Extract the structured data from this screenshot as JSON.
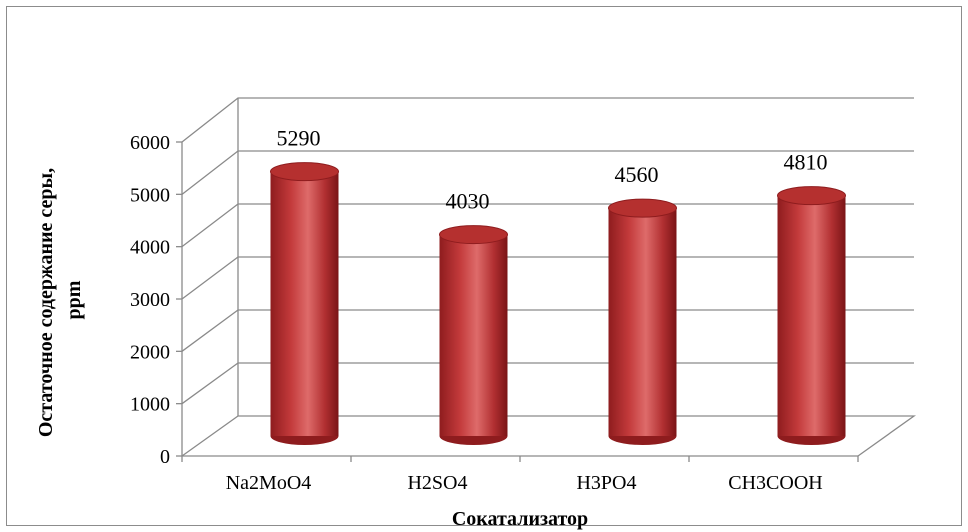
{
  "chart_data": {
    "type": "bar",
    "style": "3d-cylinder",
    "categories": [
      "Na2MoO4",
      "H2SO4",
      "H3PO4",
      "CH3COOH"
    ],
    "values": [
      5290,
      4030,
      4560,
      4810
    ],
    "data_labels": [
      "5290",
      "4030",
      "4560",
      "4810"
    ],
    "xlabel": "Сокатализатор",
    "ylabel_lines": [
      "Остаточное содержание серы,",
      "ppm"
    ],
    "yticks": [
      "0",
      "1000",
      "2000",
      "3000",
      "4000",
      "5000",
      "6000"
    ],
    "ylim": [
      0,
      6000
    ],
    "grid": true,
    "legend": "none",
    "bar_color": "#c0393b"
  }
}
